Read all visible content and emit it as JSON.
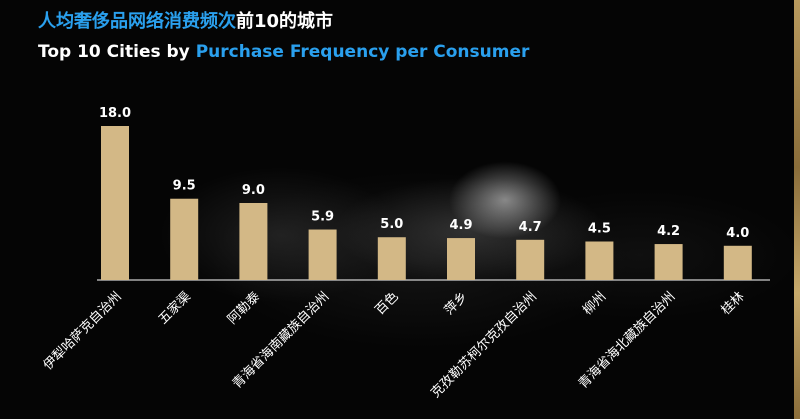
{
  "title": {
    "cn_highlight": "人均奢侈品网络消费频次",
    "cn_rest": "前10的城市",
    "en_prefix": "Top 10 Cities by ",
    "en_highlight": "Purchase Frequency per Consumer"
  },
  "colors": {
    "bar": "#d3b886",
    "highlight": "#2aa0ee",
    "axis": "#ffffff",
    "background": "#050505",
    "stripe": "#b99a5e"
  },
  "chart_data": {
    "type": "bar",
    "title": "Top 10 Cities by Purchase Frequency per Consumer",
    "categories": [
      "伊犁哈萨克自治州",
      "五家渠",
      "阿勒泰",
      "青海省海南藏族自治州",
      "百色",
      "萍乡",
      "克孜勒苏柯尔克孜自治州",
      "柳州",
      "青海省海北藏族自治州",
      "桂林"
    ],
    "values": [
      18.0,
      9.5,
      9.0,
      5.9,
      5.0,
      4.9,
      4.7,
      4.5,
      4.2,
      4.0
    ],
    "value_labels": [
      "18.0",
      "9.5",
      "9.0",
      "5.9",
      "5.0",
      "4.9",
      "4.7",
      "4.5",
      "4.2",
      "4.0"
    ],
    "ylim": [
      0,
      18.0
    ],
    "grid": false,
    "legend": "none",
    "xlabel": "",
    "ylabel": ""
  }
}
